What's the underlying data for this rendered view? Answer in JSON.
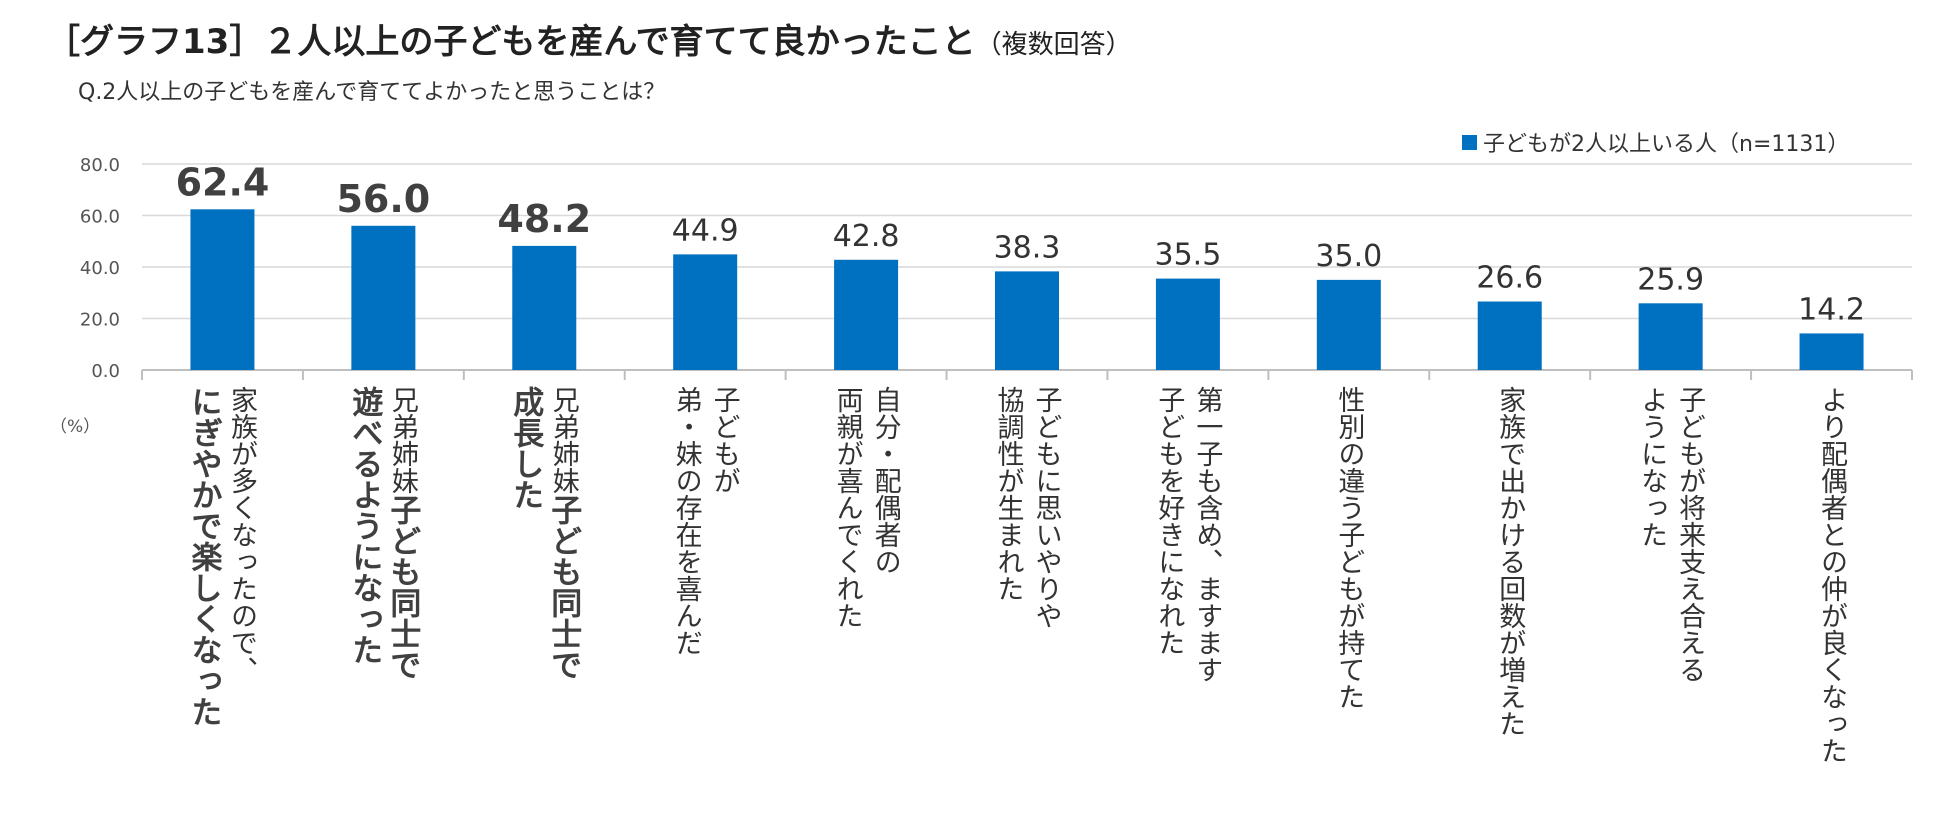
{
  "title": "［グラフ13］２人以上の子どもを産んで育てて良かったこと",
  "title_suffix": "（複数回答）",
  "question": "Q.2人以上の子どもを産んで育ててよかったと思うことは？",
  "unit_label": "（%）",
  "colors": {
    "bar": "#0070c0",
    "grid": "#d9d9d9",
    "axis": "#bfbfbf",
    "text": "#333333",
    "emph": "#404040"
  },
  "chart_data": {
    "type": "bar",
    "title": "［グラフ13］２人以上の子どもを産んで育てて良かったこと（複数回答）",
    "ylabel": "%",
    "ylim": [
      0,
      80
    ],
    "yticks": [
      "0.0",
      "20.0",
      "40.0",
      "60.0",
      "80.0"
    ],
    "grid": true,
    "legend_position": "top-right",
    "series": [
      {
        "name": "子どもが2人以上いる人（n=1131）",
        "values": [
          62.4,
          56.0,
          48.2,
          44.9,
          42.8,
          38.3,
          35.5,
          35.0,
          26.6,
          25.9,
          14.2
        ]
      }
    ],
    "value_labels": [
      "62.4",
      "56.0",
      "48.2",
      "44.9",
      "42.8",
      "38.3",
      "35.5",
      "35.0",
      "26.6",
      "25.9",
      "14.2"
    ],
    "emphasized": [
      true,
      true,
      true,
      false,
      false,
      false,
      false,
      false,
      false,
      false,
      false
    ],
    "categories": [
      {
        "lines": [
          {
            "text": "家族が多くなったので、",
            "bold": false
          },
          {
            "text": "にぎやかで楽しくなった",
            "bold": true
          }
        ]
      },
      {
        "lines": [
          {
            "text": "兄弟姉妹",
            "bold": false,
            "join": "子ども同士で"
          },
          {
            "text": "遊べるようになった",
            "bold": true
          }
        ]
      },
      {
        "lines": [
          {
            "text": "兄弟姉妹",
            "bold": false,
            "join": "子ども同士で"
          },
          {
            "text": "成長した",
            "bold": true
          }
        ]
      },
      {
        "lines": [
          {
            "text": "子どもが",
            "bold": false
          },
          {
            "text": "弟・妹の存在を喜んだ",
            "bold": false
          }
        ]
      },
      {
        "lines": [
          {
            "text": "自分・配偶者の",
            "bold": false
          },
          {
            "text": "両親が喜んでくれた",
            "bold": false
          }
        ]
      },
      {
        "lines": [
          {
            "text": "子どもに思いやりや",
            "bold": false
          },
          {
            "text": "協調性が生まれた",
            "bold": false
          }
        ]
      },
      {
        "lines": [
          {
            "text": "第一子も含め、ますます",
            "bold": false
          },
          {
            "text": "子どもを好きになれた",
            "bold": false
          }
        ]
      },
      {
        "lines": [
          {
            "text": "性別の違う子どもが持てた",
            "bold": false
          }
        ]
      },
      {
        "lines": [
          {
            "text": "家族で出かける回数が増えた",
            "bold": false
          }
        ]
      },
      {
        "lines": [
          {
            "text": "子どもが将来支え合える",
            "bold": false
          },
          {
            "text": "ようになった",
            "bold": false
          }
        ]
      },
      {
        "lines": [
          {
            "text": "より配偶者との仲が良くなった",
            "bold": false
          }
        ]
      }
    ]
  }
}
